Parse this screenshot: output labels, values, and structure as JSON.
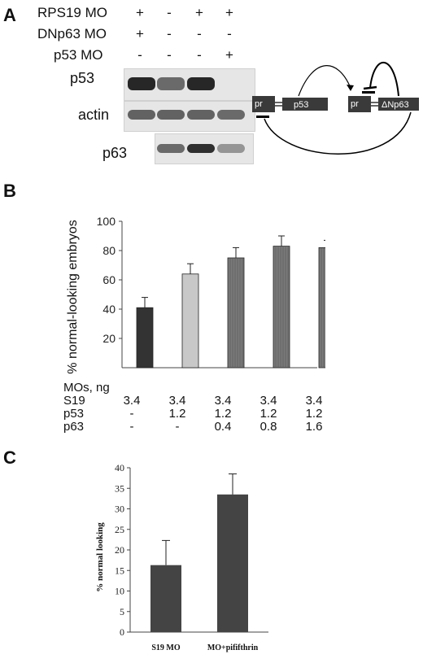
{
  "panel_a": {
    "letter": "A",
    "rows": [
      {
        "label": "RPS19 MO",
        "signs": [
          "+",
          "-",
          "+",
          "+"
        ]
      },
      {
        "label": "DNp63 MO",
        "signs": [
          "+",
          "-",
          "-",
          "-"
        ]
      },
      {
        "label": "p53 MO",
        "signs": [
          "-",
          "-",
          "-",
          "+"
        ]
      }
    ],
    "bands": {
      "p53": "p53",
      "actin": "actin",
      "p63": "p63"
    },
    "band_intensity": {
      "p53": [
        0.95,
        0.55,
        0.95,
        0.0
      ],
      "actin": [
        0.6,
        0.6,
        0.6,
        0.55
      ],
      "p63": [
        null,
        0.55,
        0.9,
        0.3
      ]
    },
    "schematic": {
      "promoter": "pr",
      "gene1": "p53",
      "gene2": "ΔNp63"
    }
  },
  "panel_b": {
    "letter": "B",
    "mos_header": "MOs, ng",
    "table": [
      {
        "label": "S19",
        "values": [
          "3.4",
          "3.4",
          "3.4",
          "3.4",
          "3.4"
        ]
      },
      {
        "label": "p53",
        "values": [
          "-",
          "1.2",
          "1.2",
          "1.2",
          "1.2"
        ]
      },
      {
        "label": "p63",
        "values": [
          "-",
          "-",
          "0.4",
          "0.8",
          "1.6"
        ]
      }
    ]
  },
  "panel_c": {
    "letter": "C"
  },
  "chart_data": [
    {
      "type": "bar",
      "title": "",
      "xlabel": "",
      "ylabel": "% normal-looking embryos",
      "ylim": [
        0,
        100
      ],
      "yticks": [
        20,
        40,
        60,
        80,
        100
      ],
      "values": [
        41,
        64,
        75,
        83,
        82
      ],
      "errors": [
        7,
        7,
        7,
        7,
        5
      ],
      "bar_colors": [
        "#333333",
        "#c8c8c8",
        "#7a7a7a",
        "#7a7a7a",
        "#7a7a7a"
      ],
      "grid": false
    },
    {
      "type": "bar",
      "title": "",
      "xlabel": "",
      "ylabel": "% normal looking",
      "categories": [
        "S19 MO",
        "MO+pififthrin"
      ],
      "ylim": [
        0,
        40
      ],
      "yticks": [
        0,
        5,
        10,
        15,
        20,
        25,
        30,
        35,
        40
      ],
      "values": [
        16.3,
        33.5
      ],
      "errors": [
        6,
        5
      ],
      "bar_colors": [
        "#444444",
        "#444444"
      ],
      "grid": false
    }
  ]
}
